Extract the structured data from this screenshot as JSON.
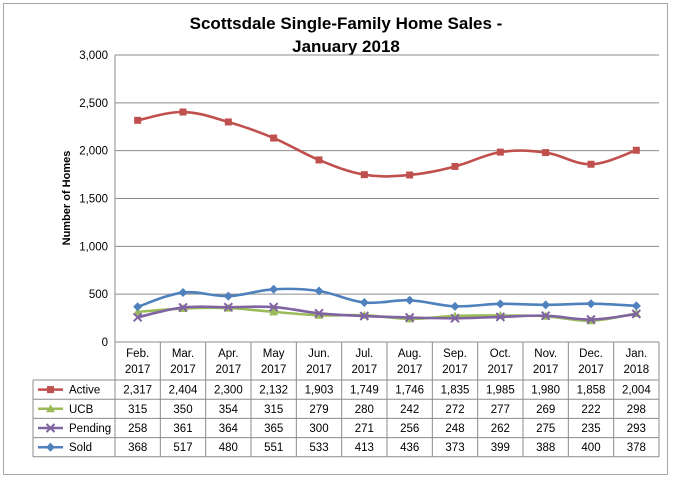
{
  "chart_data": {
    "type": "line",
    "title": "Scottsdale Single-Family Home Sales -",
    "subtitle": "January 2018",
    "ylabel": "Number of Homes",
    "xlabel": "",
    "ylim": [
      0,
      3000
    ],
    "yticks": [
      "0",
      "500",
      "1,000",
      "1,500",
      "2,000",
      "2,500",
      "3,000"
    ],
    "ytick_values": [
      0,
      500,
      1000,
      1500,
      2000,
      2500,
      3000
    ],
    "grid": true,
    "legend": "data-table",
    "categories": [
      [
        "Feb.",
        "2017"
      ],
      [
        "Mar.",
        "2017"
      ],
      [
        "Apr.",
        "2017"
      ],
      [
        "May",
        "2017"
      ],
      [
        "Jun.",
        "2017"
      ],
      [
        "Jul.",
        "2017"
      ],
      [
        "Aug.",
        "2017"
      ],
      [
        "Sep.",
        "2017"
      ],
      [
        "Oct.",
        "2017"
      ],
      [
        "Nov.",
        "2017"
      ],
      [
        "Dec.",
        "2017"
      ],
      [
        "Jan.",
        "2018"
      ]
    ],
    "series": [
      {
        "name": "Active",
        "color": "#c0504d",
        "marker": "square",
        "values": [
          2317,
          2404,
          2300,
          2132,
          1903,
          1749,
          1746,
          1835,
          1985,
          1980,
          1858,
          2004
        ],
        "labels": [
          "2,317",
          "2,404",
          "2,300",
          "2,132",
          "1,903",
          "1,749",
          "1,746",
          "1,835",
          "1,985",
          "1,980",
          "1,858",
          "2,004"
        ]
      },
      {
        "name": "UCB",
        "color": "#9bbb59",
        "marker": "triangle",
        "values": [
          315,
          350,
          354,
          315,
          279,
          280,
          242,
          272,
          277,
          269,
          222,
          298
        ],
        "labels": [
          "315",
          "350",
          "354",
          "315",
          "279",
          "280",
          "242",
          "272",
          "277",
          "269",
          "222",
          "298"
        ]
      },
      {
        "name": "Pending",
        "color": "#8064a2",
        "marker": "x",
        "values": [
          258,
          361,
          364,
          365,
          300,
          271,
          256,
          248,
          262,
          275,
          235,
          293
        ],
        "labels": [
          "258",
          "361",
          "364",
          "365",
          "300",
          "271",
          "256",
          "248",
          "262",
          "275",
          "235",
          "293"
        ]
      },
      {
        "name": "Sold",
        "color": "#4f81bd",
        "marker": "diamond",
        "values": [
          368,
          517,
          480,
          551,
          533,
          413,
          436,
          373,
          399,
          388,
          400,
          378
        ],
        "labels": [
          "368",
          "517",
          "480",
          "551",
          "533",
          "413",
          "436",
          "373",
          "399",
          "388",
          "400",
          "378"
        ]
      }
    ]
  }
}
